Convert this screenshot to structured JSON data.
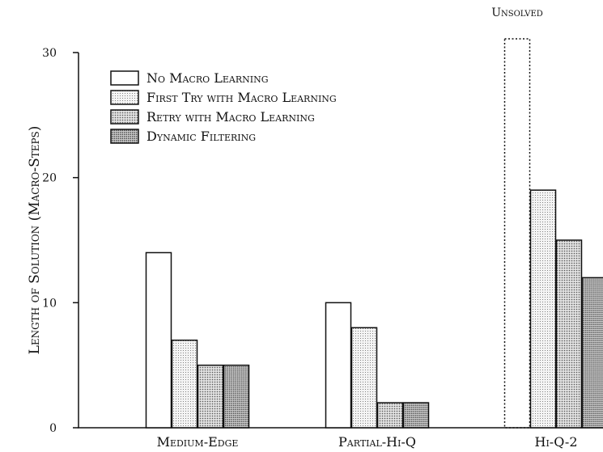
{
  "chart_data": {
    "type": "bar",
    "ylabel": "Length of Solution (Macro-Steps)",
    "ylim": [
      0,
      30
    ],
    "yticks": [
      0,
      10,
      20,
      30
    ],
    "grid": false,
    "legend_position": "top-left",
    "categories": [
      "Medium-Edge",
      "Partial-Hi-Q",
      "Hi-Q-2"
    ],
    "series": [
      {
        "name": "No Macro Learning",
        "pattern": "white",
        "values": [
          14,
          10,
          null
        ]
      },
      {
        "name": "First Try with Macro Learning",
        "pattern": "light-dots",
        "values": [
          7,
          8,
          19
        ]
      },
      {
        "name": "Retry with Macro Learning",
        "pattern": "medium-dots",
        "values": [
          5,
          2,
          15
        ]
      },
      {
        "name": "Dynamic Filtering",
        "pattern": "dense-dots",
        "values": [
          5,
          2,
          12
        ]
      }
    ],
    "annotations": [
      {
        "text": "Unsolved",
        "category": "Hi-Q-2",
        "series": "No Macro Learning"
      }
    ]
  }
}
